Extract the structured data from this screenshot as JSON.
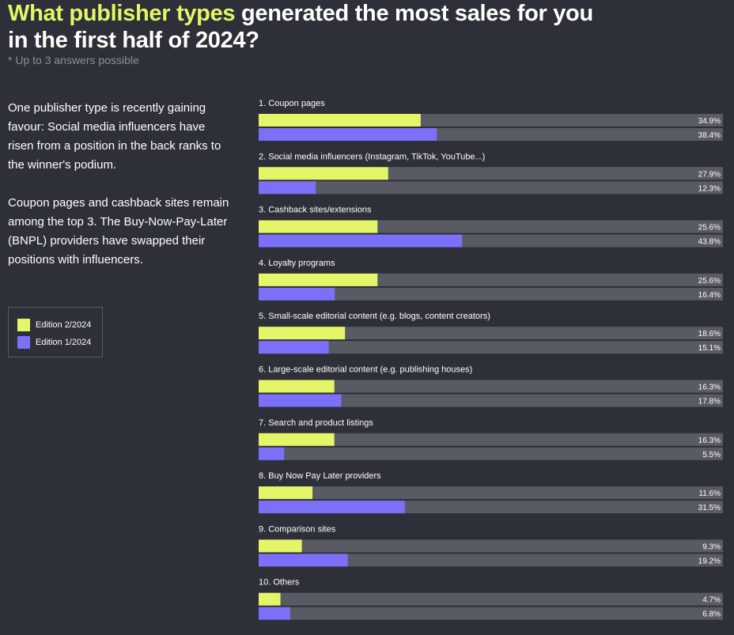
{
  "header": {
    "title_highlight": "What publisher types",
    "title_rest": " generated the most sales for you in the first half of 2024?",
    "note": "* Up to 3 answers possible"
  },
  "description": {
    "paragraph1": "One publisher type is recently gaining favour: Social media influencers have risen from a position in the back ranks to the winner's podium.",
    "paragraph2": "Coupon pages and cashback sites remain among the top 3. The Buy-Now-Pay-Later (BNPL) providers have swapped their positions with influencers."
  },
  "legend": {
    "items": [
      {
        "label": "Edition 2/2024",
        "color": "#e4f567"
      },
      {
        "label": "Edition 1/2024",
        "color": "#7b70f7"
      }
    ]
  },
  "chart_data": {
    "type": "bar",
    "orientation": "horizontal",
    "xlim": [
      0,
      100
    ],
    "grid": false,
    "categories": [
      "1. Coupon pages",
      "2. Social media influencers (Instagram, TikTok, YouTube...)",
      "3. Cashback sites/extensions",
      "4. Loyalty programs",
      "5. Small-scale editorial content (e.g. blogs, content creators)",
      "6. Large-scale editorial content (e.g. publishing houses)",
      "7. Search and product listings",
      "8. Buy Now Pay Later providers",
      "9. Comparison sites",
      "10. Others"
    ],
    "series": [
      {
        "name": "Edition 2/2024",
        "color": "#e4f567",
        "values": [
          34.9,
          27.9,
          25.6,
          25.6,
          18.6,
          16.3,
          16.3,
          11.6,
          9.3,
          4.7
        ],
        "labels": [
          "34.9%",
          "27.9%",
          "25.6%",
          "25.6%",
          "18.6%",
          "16.3%",
          "16.3%",
          "11.6%",
          "9.3%",
          "4.7%"
        ]
      },
      {
        "name": "Edition 1/2024",
        "color": "#7b70f7",
        "values": [
          38.4,
          12.3,
          43.8,
          16.4,
          15.1,
          17.8,
          5.5,
          31.5,
          19.2,
          6.8
        ],
        "labels": [
          "38.4%",
          "12.3%",
          "43.8%",
          "16.4%",
          "15.1%",
          "17.8%",
          "5.5%",
          "31.5%",
          "19.2%",
          "6.8%"
        ]
      }
    ]
  }
}
